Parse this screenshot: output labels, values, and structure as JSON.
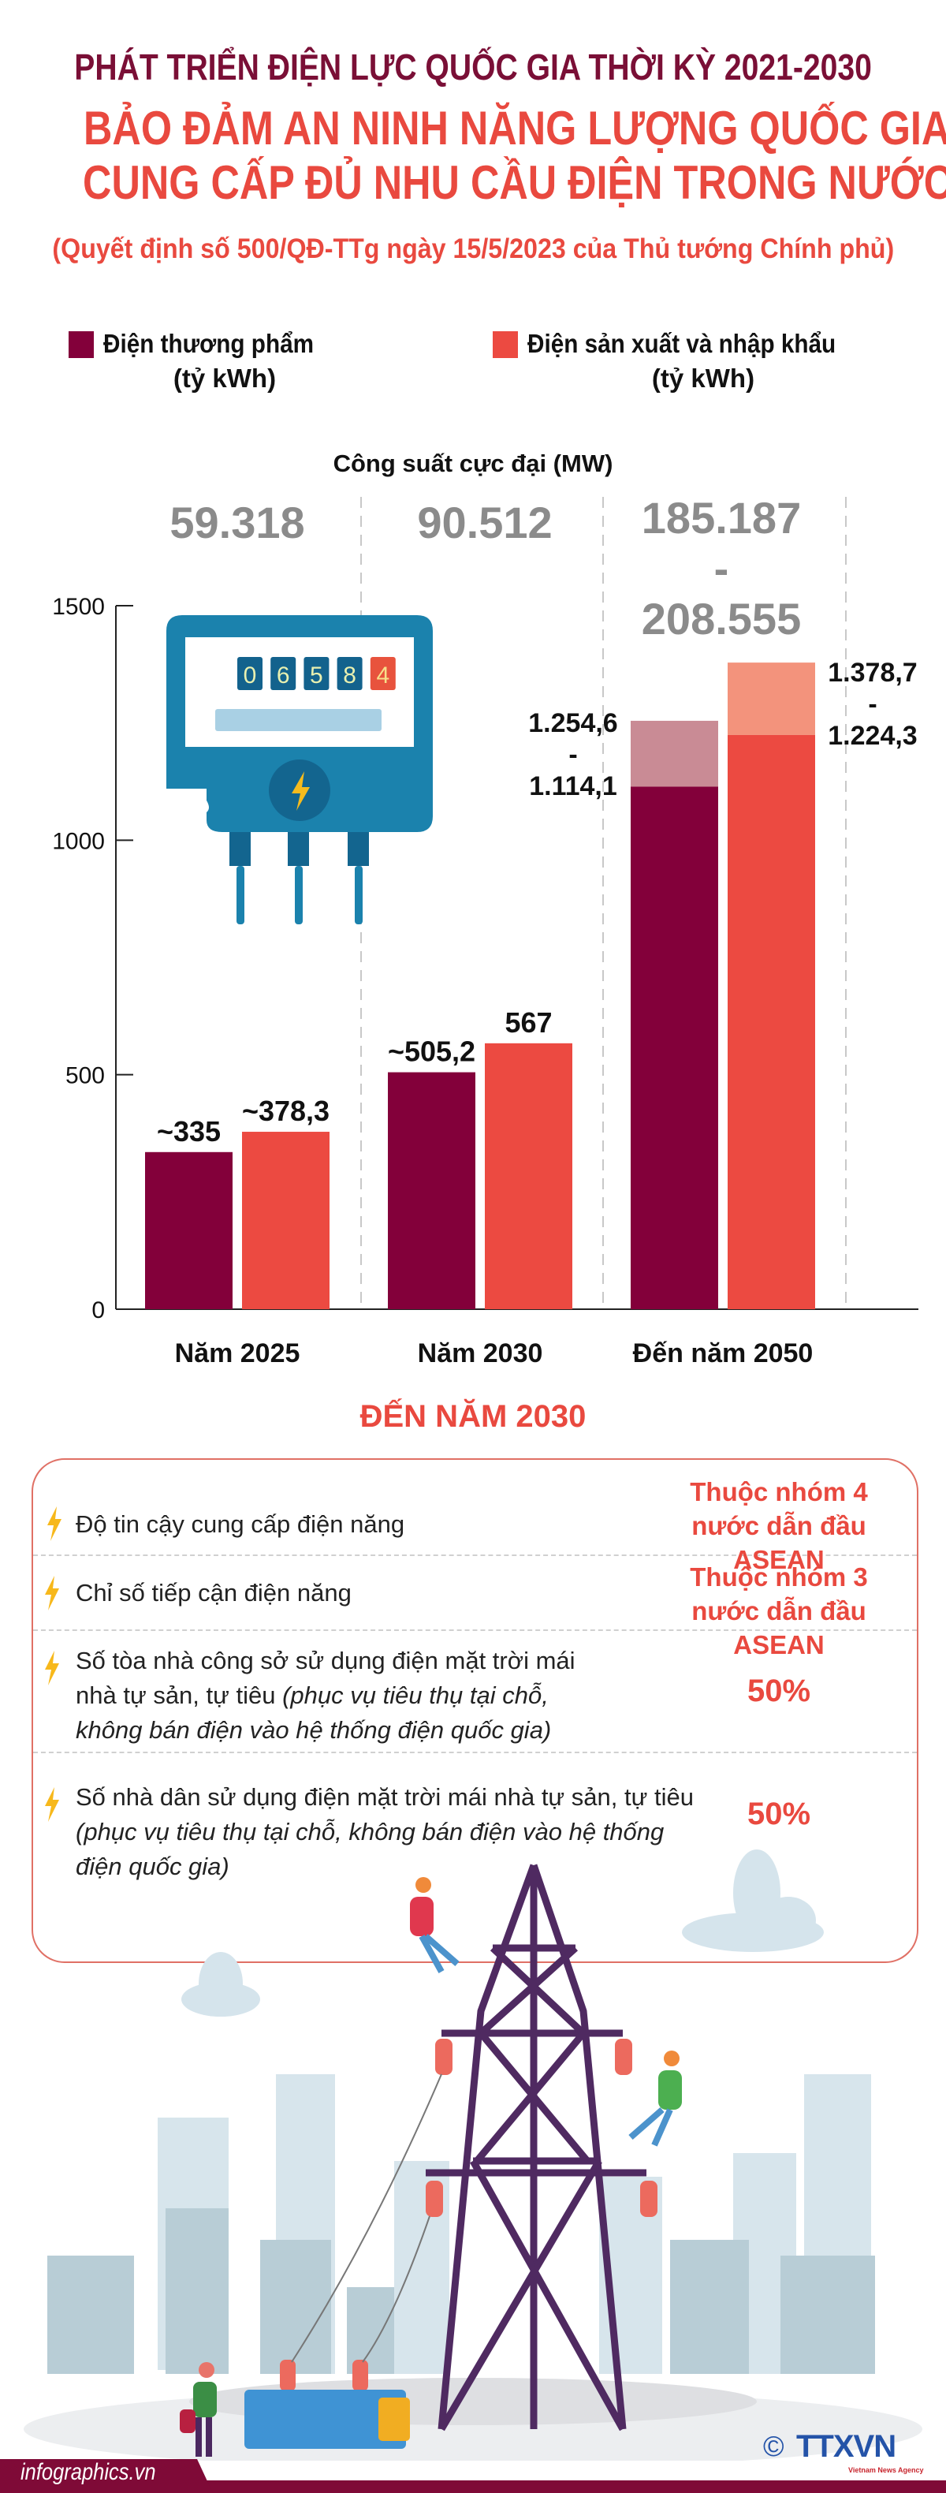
{
  "header": {
    "supertitle": "PHÁT TRIỂN ĐIỆN LỰC QUỐC GIA THỜI KỲ 2021-2030",
    "title_line1": "BẢO ĐẢM AN NINH NĂNG LƯỢNG QUỐC GIA,",
    "title_line2": "CUNG CẤP ĐỦ NHU CẦU ĐIỆN TRONG NƯỚC",
    "subtitle": "(Quyết định số 500/QĐ-TTg ngày 15/5/2023 của Thủ tướng Chính phủ)"
  },
  "colors": {
    "dien_thuong_pham": "#83003a",
    "dien_thuong_pham_range": "#c98b95",
    "dien_san_xuat": "#ec4a41",
    "dien_san_xuat_range": "#f3937c",
    "title_maroon": "#7a0f36",
    "accent_red": "#e9493f",
    "capacity_gray": "#8b8b8b"
  },
  "legend": [
    {
      "label": "Điện thương phẩm",
      "unit": "(tỷ kWh)"
    },
    {
      "label": "Điện sản xuất và nhập khẩu",
      "unit": "(tỷ kWh)"
    }
  ],
  "capacity": {
    "title": "Công suất cực đại (MW)",
    "values": [
      {
        "line1": "59.318"
      },
      {
        "line1": "90.512"
      },
      {
        "line1": "185.187",
        "sep": "-",
        "line2": "208.555"
      }
    ]
  },
  "meter": {
    "digits": [
      "0",
      "6",
      "5",
      "8",
      "4"
    ]
  },
  "chart_data": {
    "type": "bar",
    "categories": [
      "Năm 2025",
      "Năm 2030",
      "Đến năm 2050"
    ],
    "ylim": [
      0,
      1500
    ],
    "yticks": [
      "0",
      "500",
      "1000",
      "1500"
    ],
    "ytick_values": [
      0,
      500,
      1000,
      1500
    ],
    "grid": false,
    "legend_position": "top",
    "series": [
      {
        "name": "Điện thương phẩm (tỷ kWh)",
        "values": [
          335,
          505.2,
          [
            1114.1,
            1254.6
          ]
        ],
        "labels": [
          "~335",
          "~505,2",
          [
            "1.254,6",
            "-",
            "1.114,1"
          ]
        ]
      },
      {
        "name": "Điện sản xuất và nhập khẩu (tỷ kWh)",
        "values": [
          378.3,
          567,
          [
            1224.3,
            1378.7
          ]
        ],
        "labels": [
          "~378,3",
          "567",
          [
            "1.378,7",
            "-",
            "1.224,3"
          ]
        ]
      }
    ]
  },
  "targets": {
    "title": "ĐẾN NĂM 2030",
    "rows": [
      {
        "text": "Độ tin cậy cung cấp điện năng",
        "note": "",
        "value": "Thuộc nhóm 4 nước dẫn đầu ASEAN"
      },
      {
        "text": "Chỉ số tiếp cận điện năng",
        "note": "",
        "value": "Thuộc nhóm 3 nước dẫn đầu ASEAN"
      },
      {
        "text": "Số tòa nhà công sở sử dụng điện mặt trời mái nhà tự sản, tự tiêu ",
        "note": "(phục vụ tiêu thụ tại chỗ, không bán điện vào hệ thống điện quốc gia)",
        "value": "50%"
      },
      {
        "text": "Số nhà dân sử dụng điện mặt trời mái nhà tự sản, tự tiêu ",
        "note": "(phục vụ tiêu thụ tại chỗ, không bán điện vào hệ thống điện quốc gia)",
        "value": "50%"
      }
    ]
  },
  "footer": {
    "site": "infographics.vn",
    "logo_text": "TTXVN",
    "logo_sub": "Vietnam News Agency",
    "copyright": "©"
  }
}
